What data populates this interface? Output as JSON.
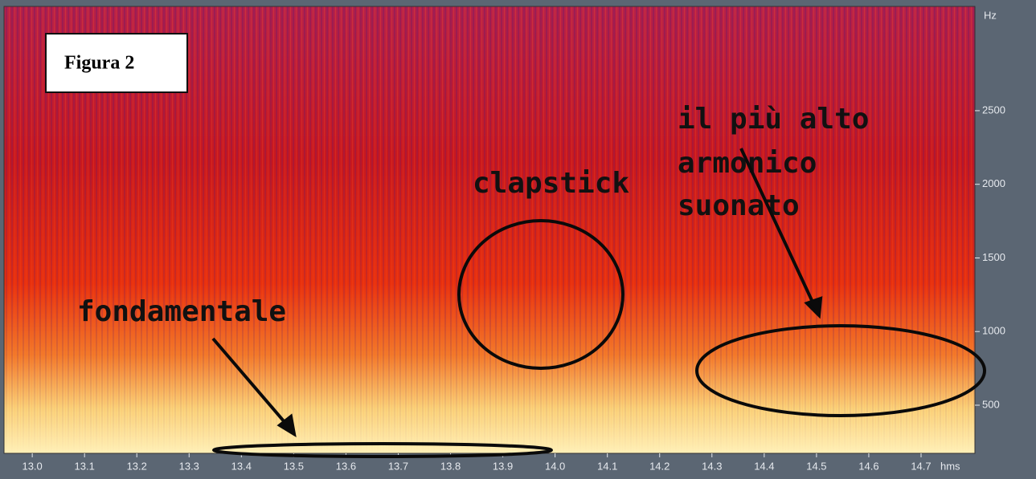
{
  "chart_data": {
    "type": "spectrogram",
    "figure_label": "Figura 2",
    "annotations": [
      "clapstick",
      "il più alto",
      "armonico",
      "suonato",
      "fondamentale"
    ],
    "y_unit": "Hz",
    "x_unit": "hms",
    "xlim": [
      12.946,
      14.803
    ],
    "xticks": [
      {
        "value": 13.0,
        "label": "13.0"
      },
      13.1,
      13.2,
      13.3,
      13.4,
      13.5,
      13.6,
      13.7,
      13.8,
      13.9,
      {
        "value": 14.0,
        "label": "14.0"
      },
      14.1,
      14.2,
      14.3,
      14.4,
      14.5,
      14.6,
      14.7
    ],
    "ylim": [
      173,
      3208
    ],
    "yticks": [
      500,
      1000,
      1500,
      2000,
      2500
    ]
  }
}
